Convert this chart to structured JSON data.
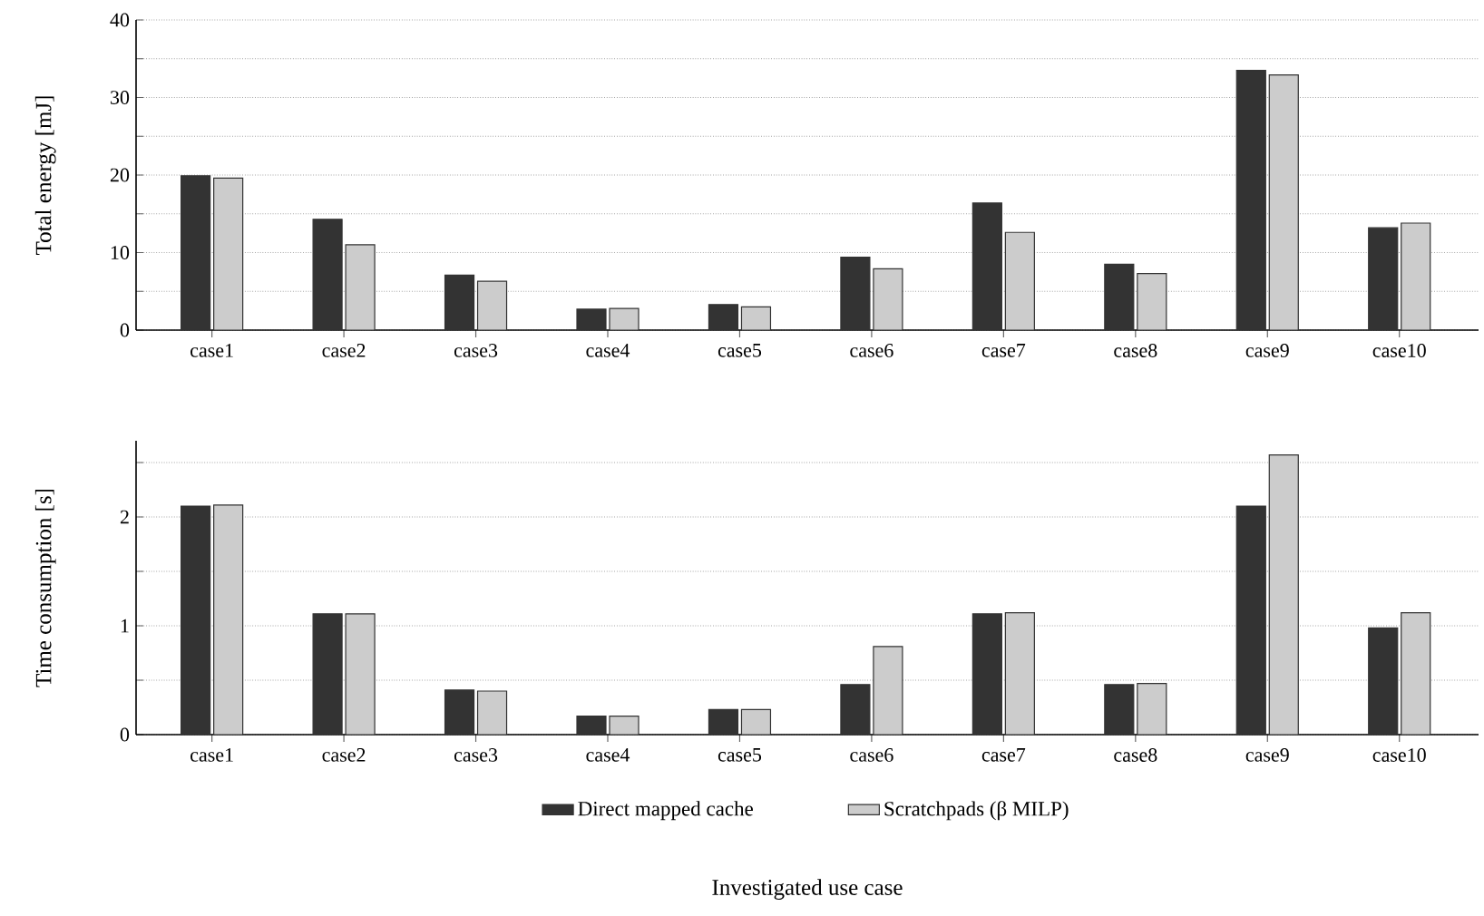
{
  "chart_data": [
    {
      "type": "bar",
      "ylabel": "Total energy [mJ]",
      "categories": [
        "case1",
        "case2",
        "case3",
        "case4",
        "case5",
        "case6",
        "case7",
        "case8",
        "case9",
        "case10"
      ],
      "series": [
        {
          "color": "#333333",
          "values": [
            19.9,
            14.3,
            7.1,
            2.7,
            3.3,
            9.4,
            16.4,
            8.5,
            33.5,
            13.2
          ]
        },
        {
          "color": "#cccccc",
          "values": [
            19.6,
            11.0,
            6.3,
            2.8,
            3.0,
            7.9,
            12.6,
            7.3,
            32.9,
            13.8
          ]
        }
      ],
      "ylim": [
        0,
        40
      ],
      "yticks": [
        0,
        {
          "value": 5,
          "label": null
        },
        10,
        {
          "value": 15,
          "label": null
        },
        20,
        {
          "value": 25,
          "label": null
        },
        30,
        {
          "value": 35,
          "label": null
        },
        40
      ],
      "grid": "y"
    },
    {
      "type": "bar",
      "ylabel": "Time consumption [s]",
      "xlabel": "Investigated use case",
      "categories": [
        "case1",
        "case2",
        "case3",
        "case4",
        "case5",
        "case6",
        "case7",
        "case8",
        "case9",
        "case10"
      ],
      "series": [
        {
          "name": "Direct mapped cache",
          "color": "#333333",
          "values": [
            2.1,
            1.11,
            0.41,
            0.17,
            0.23,
            0.46,
            1.11,
            0.46,
            2.1,
            0.98
          ]
        },
        {
          "name": "Scratchpads (β MILP)",
          "color": "#cccccc",
          "values": [
            2.11,
            1.11,
            0.4,
            0.17,
            0.23,
            0.81,
            1.12,
            0.47,
            2.57,
            1.12
          ]
        }
      ],
      "ylim": [
        0,
        2.7
      ],
      "yticks": [
        0,
        {
          "value": 0.5,
          "label": null
        },
        1,
        {
          "value": 1.5,
          "label": null
        },
        2,
        {
          "value": 2.5,
          "label": null
        }
      ],
      "grid": "y",
      "legend": "bottom"
    }
  ]
}
